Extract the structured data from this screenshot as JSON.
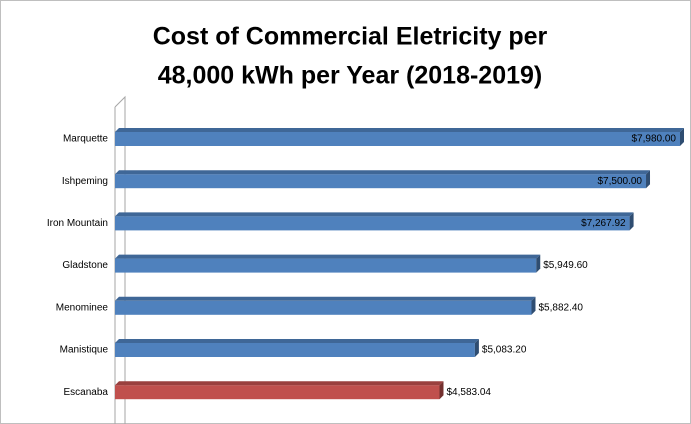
{
  "chart_data": {
    "type": "bar",
    "orientation": "horizontal",
    "title": [
      "Cost of Commercial Eletricity per",
      "48,000 kWh per Year (2018-2019)"
    ],
    "categories": [
      "Marquette",
      "Ishpeming",
      "Iron Mountain",
      "Gladstone",
      "Menominee",
      "Manistique",
      "Escanaba"
    ],
    "values": [
      7980,
      7500,
      7267.92,
      5949.6,
      5882.4,
      5083.2,
      4583.04
    ],
    "value_labels": [
      "$7,980.00",
      "$7,500.00",
      "$7,267.92",
      "$5,949.60",
      "$5,882.40",
      "$5,083.20",
      "$4,583.04"
    ],
    "colors": [
      "#4f81bd",
      "#4f81bd",
      "#4f81bd",
      "#4f81bd",
      "#4f81bd",
      "#4f81bd",
      "#c0504d"
    ]
  }
}
